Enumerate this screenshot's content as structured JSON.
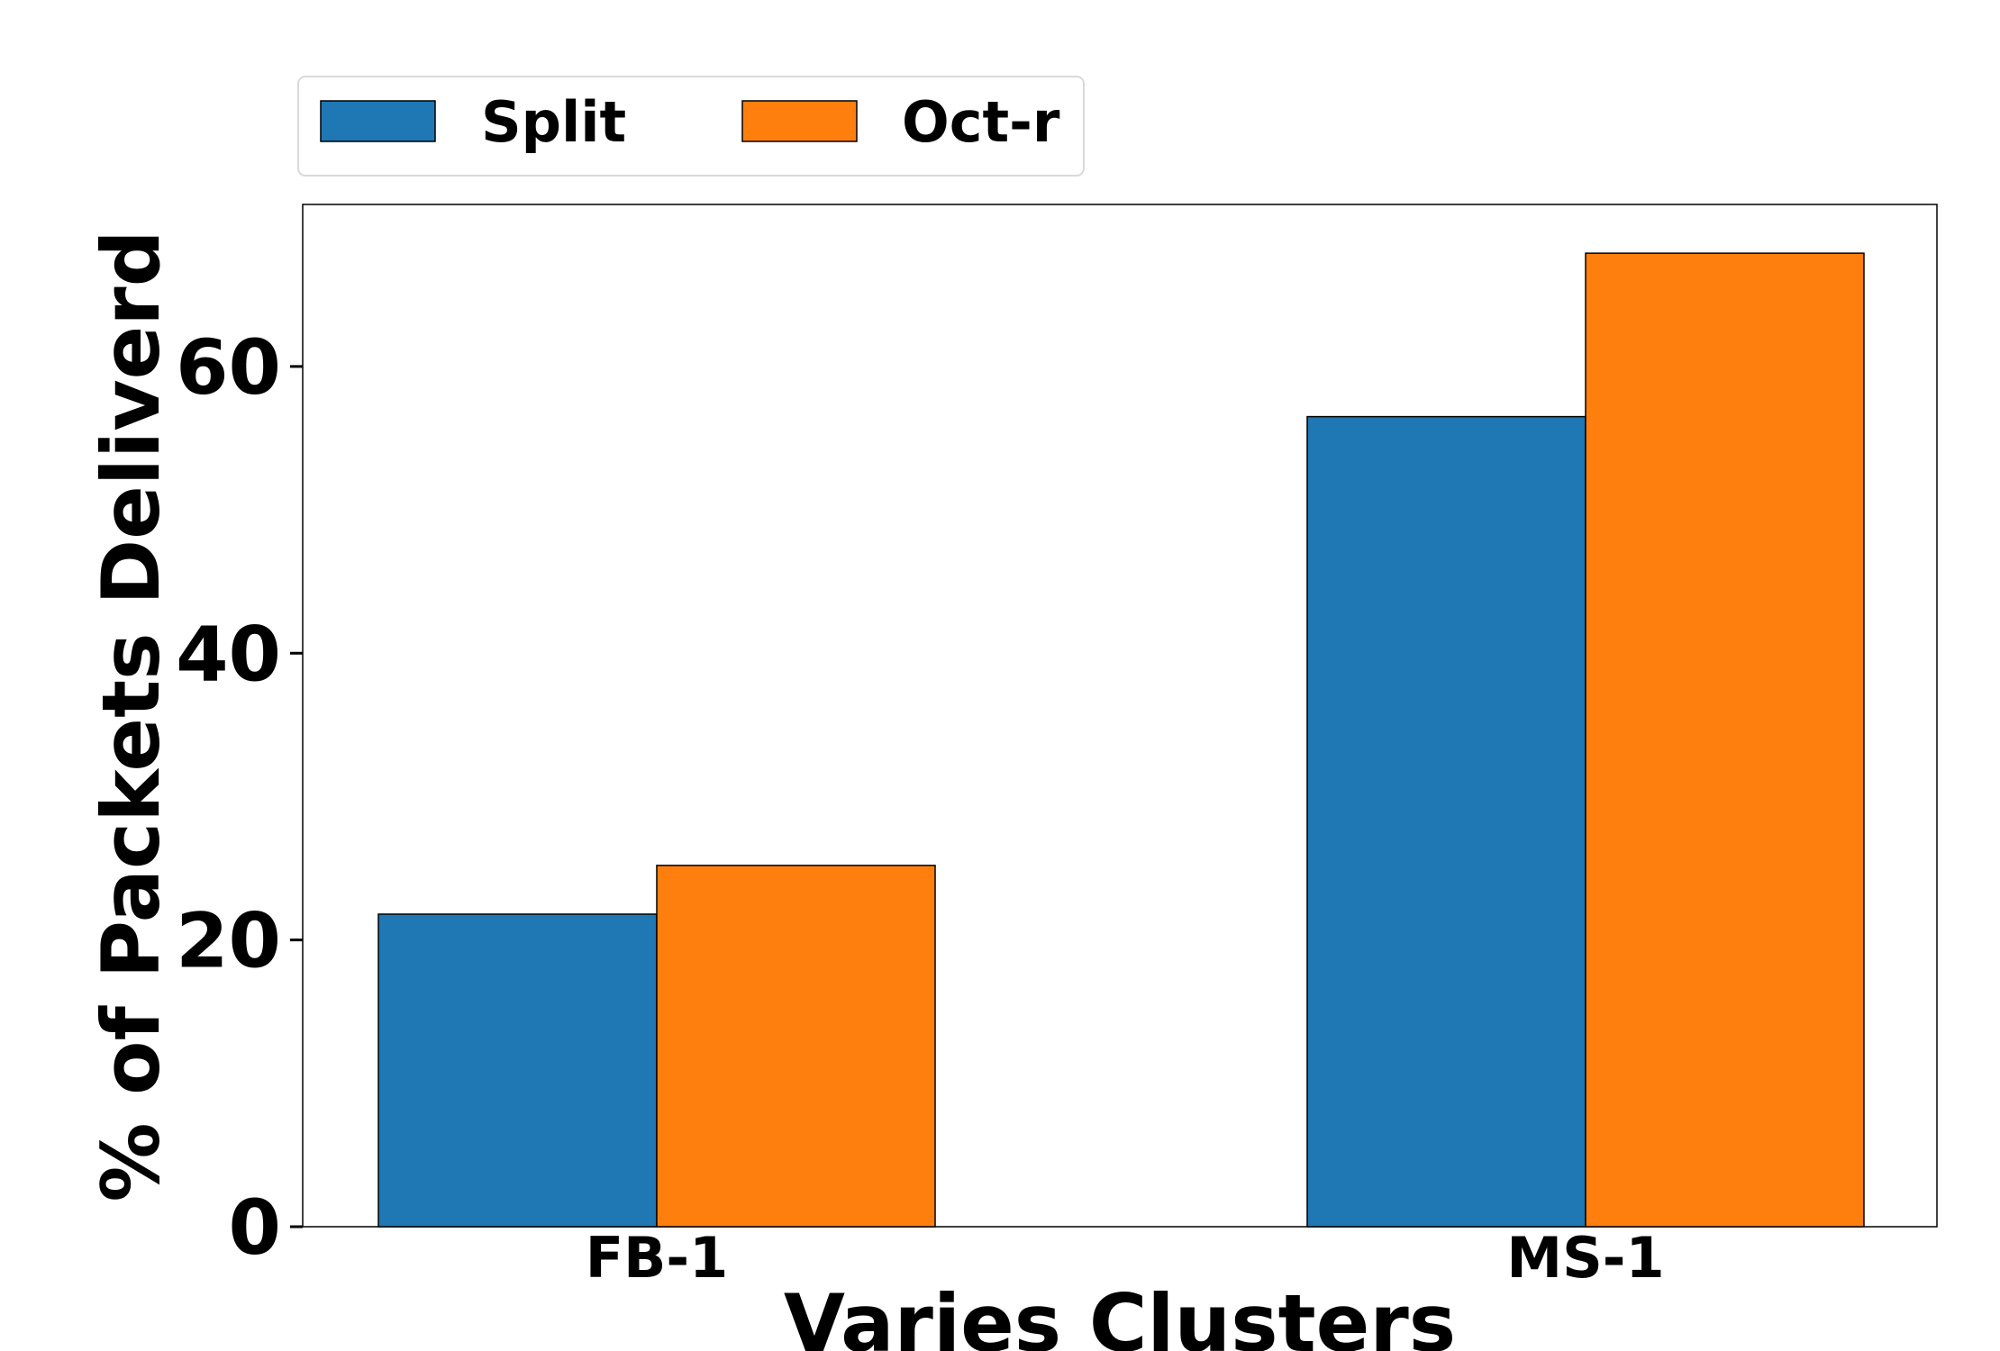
{
  "chart_data": {
    "type": "bar",
    "categories": [
      "FB-1",
      "MS-1"
    ],
    "series": [
      {
        "name": "Split",
        "values": [
          21.8,
          56.5
        ],
        "color": "#1f77b4"
      },
      {
        "name": "Oct-r",
        "values": [
          25.2,
          67.9
        ],
        "color": "#ff7f0e"
      }
    ],
    "title": "",
    "xlabel": "Varies Clusters",
    "ylabel": "% of Packets Deliverd",
    "ylim": [
      0,
      71.3
    ],
    "yticks": [
      0,
      20,
      40,
      60
    ],
    "grid": false,
    "legend_position": "top-left"
  }
}
